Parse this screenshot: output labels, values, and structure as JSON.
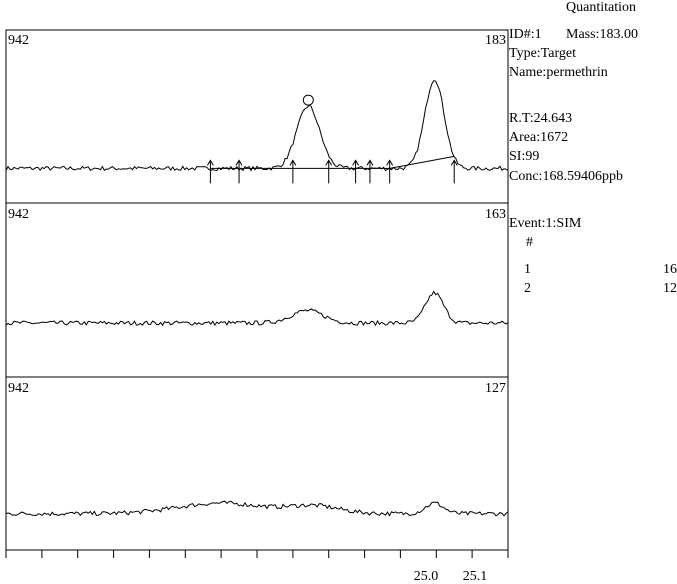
{
  "report": {
    "heading": "Quantitation",
    "id_line": "ID#:1",
    "mass_line": "Mass:183.00",
    "type_line": "Type:Target",
    "name_line": "Name:permethrin",
    "rt_line": "R.T:24.643",
    "area_line": "Area:1672",
    "si_line": "SI:99",
    "conc_line": "Conc:168.59406ppb",
    "event_line": "Event:1:SIM",
    "table_header": "#",
    "rows": [
      {
        "num": "1",
        "partial": "16"
      },
      {
        "num": "2",
        "partial": "12"
      }
    ]
  },
  "chart_data": {
    "type": "line",
    "x_ticks": [
      "25.0",
      "25.1"
    ],
    "panels": [
      {
        "left_label": "942",
        "right_label": "183",
        "baseline": 0.2,
        "noise": 0.025,
        "peaks": [
          {
            "center": 24.643,
            "height": 1.0,
            "width": 0.032
          },
          {
            "center": 24.995,
            "height": 1.44,
            "width": 0.027
          }
        ],
        "integration_marks": [
          24.37,
          24.45,
          24.6,
          24.7,
          24.775,
          24.815,
          24.87,
          25.05
        ]
      },
      {
        "left_label": "942",
        "right_label": "163",
        "baseline": 0.31,
        "noise": 0.025,
        "peaks": [
          {
            "center": 24.64,
            "height": 0.2,
            "width": 0.045
          },
          {
            "center": 24.995,
            "height": 0.48,
            "width": 0.025
          }
        ]
      },
      {
        "left_label": "942",
        "right_label": "127",
        "baseline": 0.21,
        "noise": 0.025,
        "peaks": [
          {
            "center": 24.4,
            "height": 0.17,
            "width": 0.12
          },
          {
            "center": 24.66,
            "height": 0.12,
            "width": 0.07
          },
          {
            "center": 24.995,
            "height": 0.17,
            "width": 0.025
          }
        ]
      }
    ]
  }
}
